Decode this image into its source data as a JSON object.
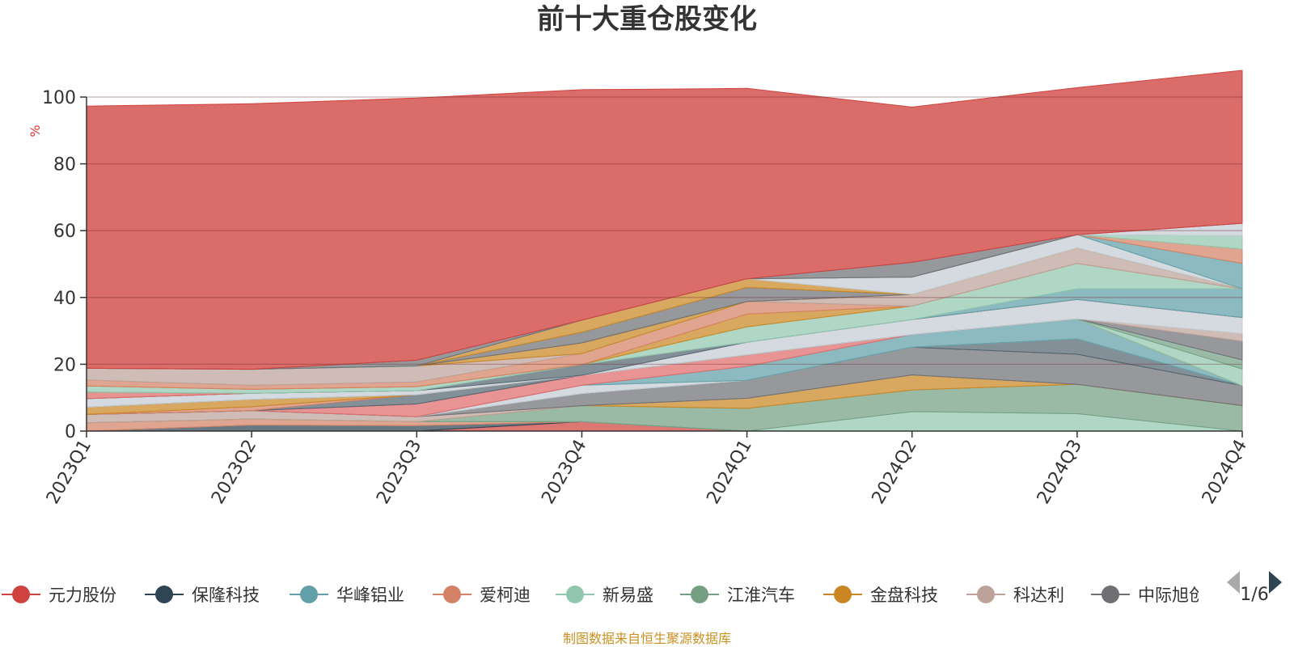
{
  "chart_data": {
    "type": "area",
    "title": "前十大重仓股变化",
    "ylabel": "%",
    "categories": [
      "2023Q1",
      "2023Q2",
      "2023Q3",
      "2023Q4",
      "2024Q1",
      "2024Q2",
      "2024Q3",
      "2024Q4"
    ],
    "yticks": [
      "0",
      "20",
      "40",
      "60",
      "80",
      "100"
    ],
    "ylim": [
      0,
      100
    ],
    "stacked": true,
    "grid": true,
    "series": [
      {
        "name": "元力股份",
        "color": "#d0423f",
        "values": [
          0,
          0,
          0,
          2.8,
          0,
          0,
          0,
          0
        ]
      },
      {
        "name": "保隆科技",
        "color": "#2f4554",
        "values": [
          0,
          1.8,
          1.6,
          0,
          0,
          0,
          0,
          0
        ]
      },
      {
        "name": "华峰铝业",
        "color": "#61a0a8",
        "values": [
          0,
          0,
          0,
          0,
          0,
          0,
          0,
          0
        ]
      },
      {
        "name": "爱柯迪",
        "color": "#d48265",
        "values": [
          2.5,
          1.8,
          1.2,
          0,
          0,
          0,
          0,
          0
        ]
      },
      {
        "name": "新易盛",
        "color": "#91c7ae",
        "values": [
          0,
          0,
          0,
          0,
          0,
          5.8,
          5.2,
          0
        ]
      },
      {
        "name": "江淮汽车",
        "color": "#749f83",
        "values": [
          0,
          0,
          0,
          4.8,
          6.8,
          6.5,
          8.8,
          7.6
        ]
      },
      {
        "name": "金盘科技",
        "color": "#ca8622",
        "values": [
          0,
          0,
          0,
          0,
          3,
          4.5,
          0,
          0
        ]
      },
      {
        "name": "科达利",
        "color": "#bda29a",
        "values": [
          2.5,
          2.5,
          1.5,
          0,
          0,
          0,
          0,
          0
        ]
      },
      {
        "name": "中际旭创",
        "color": "#6e7074",
        "values": [
          0,
          0,
          0,
          3.6,
          5.4,
          8.3,
          9,
          6
        ]
      },
      {
        "name": "",
        "color": "#546570",
        "values": [
          0,
          0,
          0,
          0,
          0,
          0,
          4.6,
          0
        ]
      },
      {
        "name": "",
        "color": "#c4ccd3",
        "values": [
          0,
          0,
          0,
          2.5,
          0,
          0,
          0,
          0
        ]
      },
      {
        "name": "",
        "color": "#61a0a8",
        "values": [
          0,
          0,
          0,
          0,
          4.2,
          3.8,
          6,
          0
        ]
      },
      {
        "name": "",
        "color": "#e06b6b",
        "values": [
          0,
          0,
          3.8,
          3,
          3.4,
          0,
          0,
          0
        ]
      },
      {
        "name": "",
        "color": "#546570",
        "values": [
          0,
          0,
          2.8,
          0,
          0,
          0,
          0,
          0
        ]
      },
      {
        "name": "",
        "color": "#d48265",
        "values": [
          0,
          1.2,
          0,
          0,
          0,
          0,
          0,
          0
        ]
      },
      {
        "name": "",
        "color": "#ca8622",
        "values": [
          2.2,
          2.2,
          0,
          0,
          0,
          0,
          0,
          0
        ]
      },
      {
        "name": "",
        "color": "#91c7ae",
        "values": [
          0,
          0,
          0,
          0,
          0,
          0,
          0,
          5
        ]
      },
      {
        "name": "",
        "color": "#749f83",
        "values": [
          0,
          0,
          0,
          0,
          0,
          0,
          0,
          2.7
        ]
      },
      {
        "name": "",
        "color": "#6e7074",
        "values": [
          0,
          0,
          0,
          0,
          0,
          0,
          0,
          5.6
        ]
      },
      {
        "name": "",
        "color": "#bda29a",
        "values": [
          0,
          0,
          0,
          0,
          0,
          0,
          0,
          2.3
        ]
      },
      {
        "name": "",
        "color": "#c4ccd3",
        "values": [
          2.5,
          1.8,
          1.2,
          0,
          3.8,
          4.5,
          5.8,
          4.8
        ]
      },
      {
        "name": "",
        "color": "#546570",
        "values": [
          0,
          0,
          0,
          3.2,
          0,
          0,
          0,
          0
        ]
      },
      {
        "name": "",
        "color": "#dd6b66",
        "values": [
          2,
          0,
          0,
          0,
          0,
          0,
          0,
          0
        ]
      },
      {
        "name": "",
        "color": "#61a0a8",
        "values": [
          0,
          0,
          0,
          0,
          0,
          0,
          3.2,
          8.6
        ]
      },
      {
        "name": "",
        "color": "#91c7ae",
        "values": [
          1.8,
          1.2,
          1.2,
          0,
          4.6,
          4,
          7.6,
          0
        ]
      },
      {
        "name": "",
        "color": "#ca8622",
        "values": [
          0,
          0,
          0,
          0,
          3.8,
          0,
          0,
          0
        ]
      },
      {
        "name": "",
        "color": "#d48265",
        "values": [
          1.8,
          1.2,
          1.4,
          3.3,
          3.8,
          0,
          0,
          0
        ]
      },
      {
        "name": "",
        "color": "#bda29a",
        "values": [
          3.5,
          4.8,
          4.8,
          0,
          0,
          3.5,
          4.6,
          0
        ]
      },
      {
        "name": "",
        "color": "#ca8622",
        "values": [
          0,
          0,
          0,
          3.2,
          0,
          0,
          0,
          0
        ]
      },
      {
        "name": "",
        "color": "#6e7074",
        "values": [
          0,
          0,
          0,
          3.2,
          4.2,
          0,
          0,
          0
        ]
      },
      {
        "name": "",
        "color": "#ca8622",
        "values": [
          0,
          0,
          0,
          3.6,
          2.6,
          0,
          0,
          0
        ]
      },
      {
        "name": "",
        "color": "#c4ccd3",
        "values": [
          0,
          0,
          0,
          0,
          0,
          5.2,
          4,
          0
        ]
      },
      {
        "name": "",
        "color": "#61a0a8",
        "values": [
          0,
          0,
          0,
          0,
          0,
          0,
          0,
          7.6
        ]
      },
      {
        "name": "",
        "color": "#d48265",
        "values": [
          0,
          0,
          0,
          0,
          0,
          0,
          0,
          4.3
        ]
      },
      {
        "name": "",
        "color": "#91c7ae",
        "values": [
          0,
          0,
          0,
          0,
          0,
          0,
          0,
          4
        ]
      },
      {
        "name": "",
        "color": "#c4ccd3",
        "values": [
          0,
          0,
          0,
          0,
          0,
          0,
          0,
          3.7
        ]
      },
      {
        "name": "",
        "color": "#6e7074",
        "values": [
          0,
          0,
          1.7,
          0,
          0,
          4.4,
          0,
          0
        ]
      },
      {
        "name": "",
        "color": "#d0423f",
        "values": [
          78.5,
          79.5,
          78.5,
          69,
          57,
          46.5,
          44,
          45.8
        ]
      }
    ]
  },
  "legend": {
    "items": [
      {
        "label": "元力股份",
        "color": "#d0423f"
      },
      {
        "label": "保隆科技",
        "color": "#2f4554"
      },
      {
        "label": "华峰铝业",
        "color": "#61a0a8"
      },
      {
        "label": "爱柯迪",
        "color": "#d48265"
      },
      {
        "label": "新易盛",
        "color": "#91c7ae"
      },
      {
        "label": "江淮汽车",
        "color": "#749f83"
      },
      {
        "label": "金盘科技",
        "color": "#ca8622"
      },
      {
        "label": "科达利",
        "color": "#bda29a"
      },
      {
        "label": "中际旭创",
        "color": "#6e7074"
      }
    ],
    "pager": "1/6",
    "prev_icon": "triangle-left-icon",
    "next_icon": "triangle-right-icon"
  },
  "source": "制图数据来自恒生聚源数据库"
}
